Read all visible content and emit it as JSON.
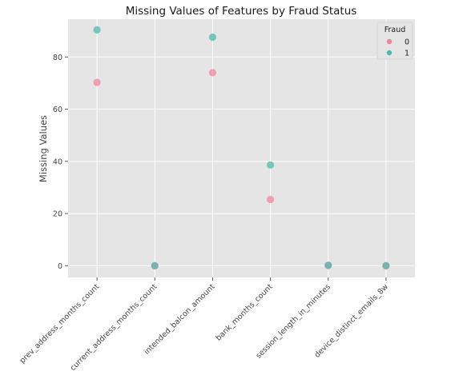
{
  "chart_data": {
    "type": "scatter",
    "title": "Missing Values of Features by Fraud Status",
    "xlabel": "",
    "ylabel": "Missing Values",
    "categories": [
      "prev_address_months_count",
      "current_address_months_count",
      "intended_balcon_amount",
      "bank_months_count",
      "session_length_in_minutes",
      "device_distinct_emails_8w"
    ],
    "series": [
      {
        "name": "0",
        "color": "#f0869b",
        "values": [
          70.3,
          0.0,
          74.0,
          25.4,
          0.2,
          0.0
        ]
      },
      {
        "name": "1",
        "color": "#4fb8b0",
        "values": [
          90.4,
          0.0,
          87.6,
          38.6,
          0.1,
          0.0
        ]
      }
    ],
    "ylim": [
      -4.5,
      94.5
    ],
    "yticks": [
      0,
      20,
      40,
      60,
      80
    ],
    "legend": {
      "title": "Fraud",
      "position": "top-right"
    },
    "grid": true
  }
}
